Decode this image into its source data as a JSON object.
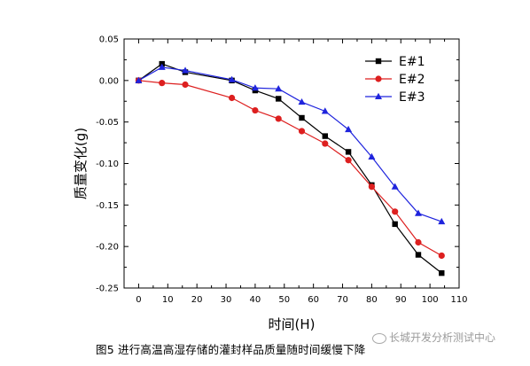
{
  "chart_data": {
    "type": "line",
    "xlabel": "时间(H)",
    "ylabel": "质量变化(g)",
    "xlim": [
      -5,
      110
    ],
    "ylim": [
      -0.25,
      0.05
    ],
    "xticks": [
      0,
      10,
      20,
      30,
      40,
      50,
      60,
      70,
      80,
      90,
      100,
      110
    ],
    "yticks": [
      0.05,
      0.0,
      -0.05,
      -0.1,
      -0.15,
      -0.2,
      -0.25
    ],
    "ytick_labels": [
      "0.05",
      "0.00",
      "-0.05",
      "-0.10",
      "-0.15",
      "-0.20",
      "-0.25"
    ],
    "grid": false,
    "legend_position": "top-right",
    "series": [
      {
        "name": "E#1",
        "color": "#000000",
        "marker": "square",
        "x": [
          0,
          8,
          16,
          32,
          40,
          48,
          56,
          64,
          72,
          80,
          88,
          96,
          104
        ],
        "values": [
          0.0,
          0.02,
          0.01,
          0.0,
          -0.012,
          -0.022,
          -0.045,
          -0.067,
          -0.086,
          -0.126,
          -0.173,
          -0.21,
          -0.232
        ]
      },
      {
        "name": "E#2",
        "color": "#dd1f1f",
        "marker": "circle",
        "x": [
          0,
          8,
          16,
          32,
          40,
          48,
          56,
          64,
          72,
          80,
          88,
          96,
          104
        ],
        "values": [
          0.0,
          -0.003,
          -0.005,
          -0.021,
          -0.036,
          -0.046,
          -0.061,
          -0.076,
          -0.096,
          -0.128,
          -0.158,
          -0.195,
          -0.211
        ]
      },
      {
        "name": "E#3",
        "color": "#1f24dd",
        "marker": "triangle",
        "x": [
          0,
          8,
          16,
          32,
          40,
          48,
          56,
          64,
          72,
          80,
          88,
          96,
          104
        ],
        "values": [
          0.0,
          0.016,
          0.012,
          0.001,
          -0.009,
          -0.01,
          -0.026,
          -0.037,
          -0.059,
          -0.092,
          -0.128,
          -0.16,
          -0.17
        ]
      }
    ]
  },
  "caption": "图5 进行高温高湿存储的灌封样品质量随时间缓慢下降",
  "watermark": "长城开发分析测试中心"
}
